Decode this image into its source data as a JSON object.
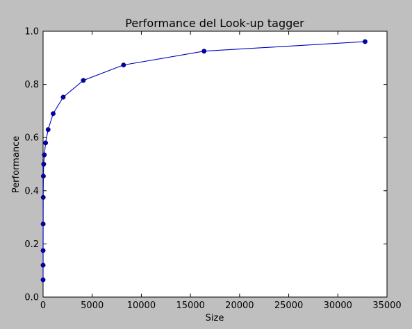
{
  "chart_data": {
    "type": "line",
    "title": "Performance del Look-up tagger",
    "xlabel": "Size",
    "ylabel": "Performance",
    "xlim": [
      0,
      35000
    ],
    "ylim": [
      0.0,
      1.0
    ],
    "xticks": [
      0,
      5000,
      10000,
      15000,
      20000,
      25000,
      30000,
      35000
    ],
    "yticks": [
      0.0,
      0.2,
      0.4,
      0.6,
      0.8,
      1.0
    ],
    "xtick_labels": [
      "0",
      "5000",
      "10000",
      "15000",
      "20000",
      "25000",
      "30000",
      "35000"
    ],
    "ytick_labels": [
      "0.0",
      "0.2",
      "0.4",
      "0.6",
      "0.8",
      "1.0"
    ],
    "grid": false,
    "series": [
      {
        "color": "#0000bf",
        "marker": "circle",
        "x": [
          1,
          2,
          4,
          8,
          16,
          32,
          64,
          128,
          256,
          512,
          1024,
          2048,
          4096,
          8192,
          16384,
          32768
        ],
        "y": [
          0.065,
          0.12,
          0.175,
          0.275,
          0.375,
          0.455,
          0.5,
          0.535,
          0.58,
          0.63,
          0.69,
          0.752,
          0.815,
          0.873,
          0.925,
          0.961
        ]
      }
    ]
  }
}
